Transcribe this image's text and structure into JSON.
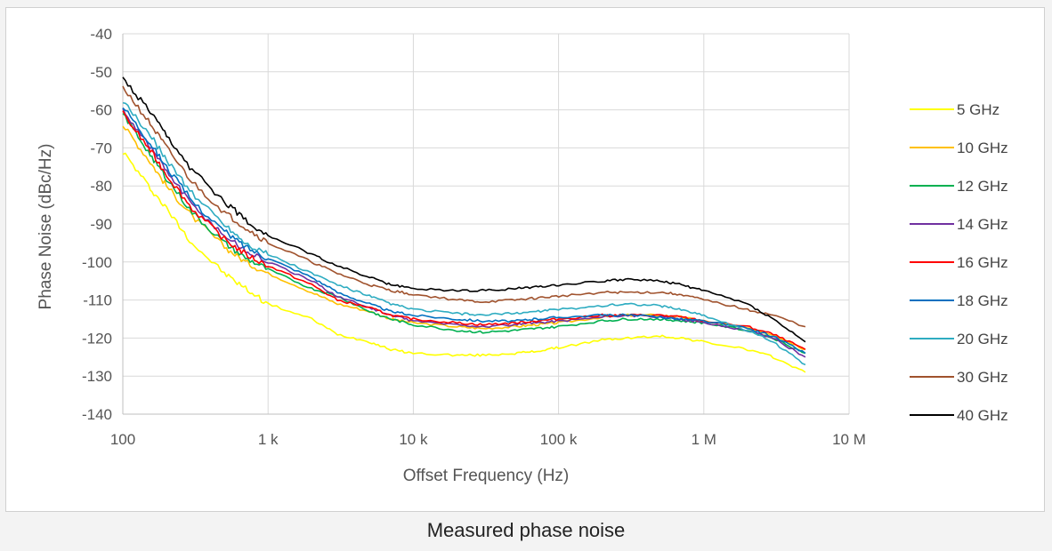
{
  "caption": "Measured phase noise",
  "chart_data": {
    "type": "line",
    "xscale": "log",
    "xlabel": "Offset Frequency (Hz)",
    "ylabel": "Phase Noise (dBc/Hz)",
    "xlim": [
      100,
      10000000
    ],
    "ylim": [
      -140,
      -40
    ],
    "x_ticks": [
      {
        "value": 100,
        "label": "100"
      },
      {
        "value": 1000,
        "label": "1 k"
      },
      {
        "value": 10000,
        "label": "10 k"
      },
      {
        "value": 100000,
        "label": "100 k"
      },
      {
        "value": 1000000,
        "label": "1 M"
      },
      {
        "value": 10000000,
        "label": "10 M"
      }
    ],
    "y_ticks": [
      -40,
      -50,
      -60,
      -70,
      -80,
      -90,
      -100,
      -110,
      -120,
      -130,
      -140
    ],
    "grid": true,
    "legend_position": "right",
    "series": [
      {
        "name": "5 GHz",
        "color": "#ffff00",
        "x": [
          100,
          150,
          200,
          300,
          500,
          700,
          1000,
          2000,
          3000,
          5000,
          7000,
          10000,
          20000,
          30000,
          50000,
          70000,
          100000,
          200000,
          300000,
          500000,
          700000,
          1000000,
          2000000,
          3000000,
          5000000
        ],
        "y": [
          -71,
          -80,
          -86,
          -95,
          -103,
          -107,
          -111,
          -115,
          -119,
          -121,
          -123,
          -124,
          -124.5,
          -124.5,
          -124,
          -123.5,
          -122.5,
          -120.5,
          -120,
          -119.5,
          -120,
          -121,
          -123,
          -125,
          -129
        ]
      },
      {
        "name": "10 GHz",
        "color": "#ffc000",
        "x": [
          100,
          150,
          200,
          300,
          500,
          700,
          1000,
          2000,
          3000,
          5000,
          7000,
          10000,
          20000,
          30000,
          50000,
          70000,
          100000,
          200000,
          300000,
          500000,
          700000,
          1000000,
          2000000,
          3000000,
          5000000
        ],
        "y": [
          -64,
          -73,
          -80,
          -88,
          -96,
          -100,
          -103,
          -108,
          -111,
          -113,
          -115,
          -116,
          -117,
          -117.5,
          -117,
          -116.5,
          -116,
          -114.5,
          -114,
          -114,
          -114.5,
          -115.5,
          -117.5,
          -119,
          -123
        ]
      },
      {
        "name": "12 GHz",
        "color": "#00b050",
        "x": [
          100,
          150,
          200,
          300,
          500,
          700,
          1000,
          2000,
          3000,
          5000,
          7000,
          10000,
          20000,
          30000,
          50000,
          70000,
          100000,
          200000,
          300000,
          500000,
          700000,
          1000000,
          2000000,
          3000000,
          5000000
        ],
        "y": [
          -61,
          -71,
          -78,
          -87,
          -95,
          -99,
          -102,
          -107,
          -109,
          -113,
          -115,
          -116.5,
          -118,
          -118.5,
          -118,
          -117.5,
          -117,
          -115.5,
          -115,
          -115,
          -115.5,
          -116,
          -118,
          -120,
          -124
        ]
      },
      {
        "name": "14 GHz",
        "color": "#7030a0",
        "x": [
          100,
          150,
          200,
          300,
          500,
          700,
          1000,
          2000,
          3000,
          5000,
          7000,
          10000,
          20000,
          30000,
          50000,
          70000,
          100000,
          200000,
          300000,
          500000,
          700000,
          1000000,
          2000000,
          3000000,
          5000000
        ],
        "y": [
          -60,
          -69,
          -76,
          -85,
          -93,
          -97,
          -100,
          -105,
          -109,
          -112,
          -114,
          -115.5,
          -116.5,
          -117,
          -116.5,
          -116,
          -115.5,
          -114.5,
          -114,
          -114.5,
          -115,
          -116,
          -118,
          -120,
          -125
        ]
      },
      {
        "name": "16 GHz",
        "color": "#ff0000",
        "x": [
          100,
          150,
          200,
          300,
          500,
          700,
          1000,
          2000,
          3000,
          5000,
          7000,
          10000,
          20000,
          30000,
          50000,
          70000,
          100000,
          200000,
          300000,
          500000,
          700000,
          1000000,
          2000000,
          3000000,
          5000000
        ],
        "y": [
          -61,
          -70,
          -77,
          -86,
          -94,
          -98,
          -101,
          -106,
          -110,
          -112,
          -114,
          -115,
          -116,
          -116.5,
          -116,
          -115.5,
          -115,
          -114,
          -114,
          -114,
          -114.5,
          -115.5,
          -117,
          -119,
          -123
        ]
      },
      {
        "name": "18 GHz",
        "color": "#0070c0",
        "x": [
          100,
          150,
          200,
          300,
          500,
          700,
          1000,
          2000,
          3000,
          5000,
          7000,
          10000,
          20000,
          30000,
          50000,
          70000,
          100000,
          200000,
          300000,
          500000,
          700000,
          1000000,
          2000000,
          3000000,
          5000000
        ],
        "y": [
          -59,
          -68,
          -75,
          -84,
          -92,
          -96,
          -99,
          -104,
          -108,
          -111,
          -113,
          -114,
          -115,
          -115.5,
          -115.5,
          -115,
          -114.5,
          -114,
          -114,
          -114.5,
          -115,
          -115.5,
          -117.5,
          -119.5,
          -124
        ]
      },
      {
        "name": "20 GHz",
        "color": "#2eacc1",
        "x": [
          100,
          150,
          200,
          300,
          500,
          700,
          1000,
          2000,
          3000,
          5000,
          7000,
          10000,
          20000,
          30000,
          50000,
          70000,
          100000,
          200000,
          300000,
          500000,
          700000,
          1000000,
          2000000,
          3000000,
          5000000
        ],
        "y": [
          -58,
          -66,
          -73,
          -82,
          -90,
          -95,
          -98,
          -103,
          -106,
          -109,
          -111,
          -112.5,
          -113.5,
          -114,
          -113.5,
          -113,
          -112.5,
          -111.5,
          -111,
          -111.5,
          -112.5,
          -114,
          -118,
          -121,
          -127
        ]
      },
      {
        "name": "30 GHz",
        "color": "#a0522d",
        "x": [
          100,
          150,
          200,
          300,
          500,
          700,
          1000,
          2000,
          3000,
          5000,
          7000,
          10000,
          20000,
          30000,
          50000,
          70000,
          100000,
          200000,
          300000,
          500000,
          700000,
          1000000,
          2000000,
          3000000,
          5000000
        ],
        "y": [
          -54,
          -63,
          -70,
          -79,
          -87,
          -91,
          -95,
          -100,
          -103,
          -106,
          -107.5,
          -108.5,
          -110,
          -110.5,
          -110,
          -109.5,
          -109,
          -108,
          -108,
          -108,
          -108.5,
          -110,
          -112.5,
          -114,
          -117
        ]
      },
      {
        "name": "40 GHz",
        "color": "#000000",
        "x": [
          100,
          150,
          200,
          300,
          500,
          700,
          1000,
          2000,
          3000,
          5000,
          7000,
          10000,
          20000,
          30000,
          50000,
          70000,
          100000,
          200000,
          300000,
          500000,
          700000,
          1000000,
          2000000,
          3000000,
          5000000
        ],
        "y": [
          -52,
          -60,
          -67,
          -76,
          -84,
          -89,
          -93,
          -98,
          -101,
          -104,
          -106,
          -107,
          -107.5,
          -107.5,
          -107,
          -106.5,
          -106,
          -105,
          -104.5,
          -105,
          -106,
          -107.5,
          -111,
          -115,
          -121
        ]
      }
    ]
  }
}
